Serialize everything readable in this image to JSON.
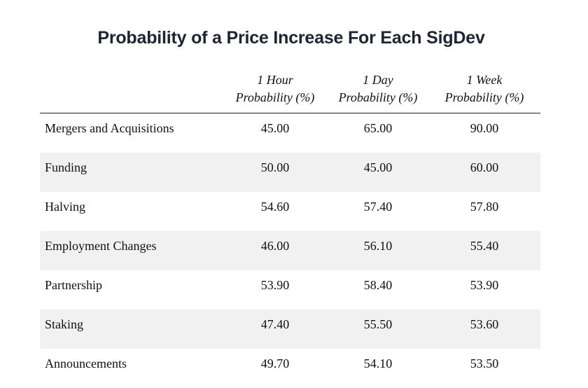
{
  "chart_data": {
    "type": "table",
    "title": "Probability of a Price Increase For Each SigDev",
    "columns": [
      {
        "line1": "1 Hour",
        "line2": "Probability (%)"
      },
      {
        "line1": "1 Day",
        "line2": "Probability (%)"
      },
      {
        "line1": "1 Week",
        "line2": "Probability (%)"
      }
    ],
    "rows": [
      {
        "label": "Mergers and Acquisitions",
        "values": [
          "45.00",
          "65.00",
          "90.00"
        ]
      },
      {
        "label": "Funding",
        "values": [
          "50.00",
          "45.00",
          "60.00"
        ]
      },
      {
        "label": "Halving",
        "values": [
          "54.60",
          "57.40",
          "57.80"
        ]
      },
      {
        "label": "Employment Changes",
        "values": [
          "46.00",
          "56.10",
          "55.40"
        ]
      },
      {
        "label": "Partnership",
        "values": [
          "53.90",
          "58.40",
          "53.90"
        ]
      },
      {
        "label": "Staking",
        "values": [
          "47.40",
          "55.50",
          "53.60"
        ]
      },
      {
        "label": "Announcements",
        "values": [
          "49.70",
          "54.10",
          "53.50"
        ]
      }
    ],
    "colors": {
      "stripe": "#f1f1f1",
      "title": "#1d2535",
      "rule": "#222222"
    }
  }
}
